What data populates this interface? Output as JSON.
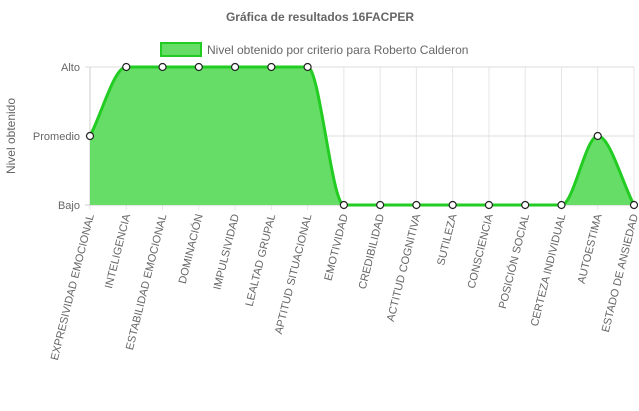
{
  "chart_data": {
    "type": "area",
    "title": "Gráfica de resultados 16FACPER",
    "ylabel": "Nivel obtenido",
    "xlabel": "",
    "y_levels": [
      "Bajo",
      "Promedio",
      "Alto"
    ],
    "categories": [
      "EXPRESIVIDAD EMOCIONAL",
      "INTELIGENCIA",
      "ESTABILIDAD EMOCIONAL",
      "DOMINACIÓN",
      "IMPULSIVIDAD",
      "LEALTAD GRUPAL",
      "APTITUD SITUACIONAL",
      "EMOTIVIDAD",
      "CREDIBILIDAD",
      "ACTITUD COGNITIVA",
      "SUTILEZA",
      "CONSCIENCIA",
      "POSICIÓN SOCIAL",
      "CERTEZA INDIVIDUAL",
      "AUTOESTIMA",
      "ESTADO DE ANSIEDAD"
    ],
    "series": [
      {
        "name": "Nivel obtenido por criterio para Roberto Calderon",
        "values": [
          1,
          2,
          2,
          2,
          2,
          2,
          2,
          0,
          0,
          0,
          0,
          0,
          0,
          0,
          1,
          0
        ],
        "fill_color": "#66dd66",
        "line_color": "#22cc22"
      }
    ],
    "ylim": [
      0,
      2
    ],
    "grid": true,
    "legend_position": "top"
  }
}
